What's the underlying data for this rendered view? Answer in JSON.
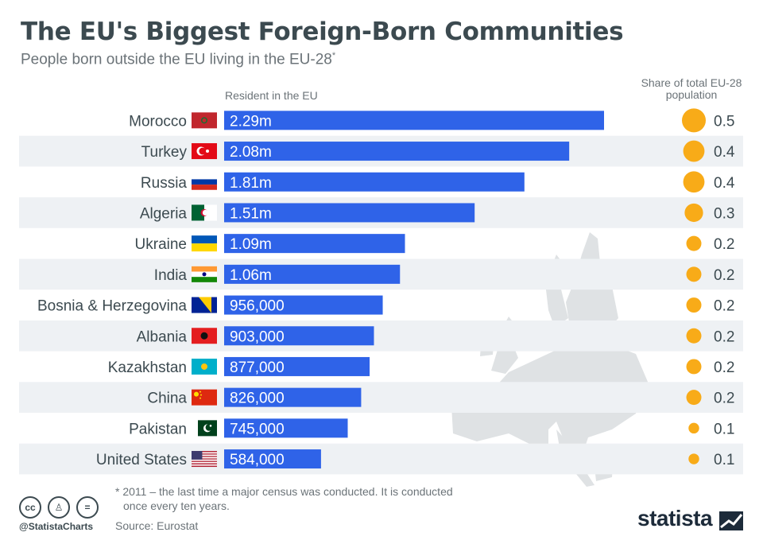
{
  "title": "The EU's Biggest Foreign-Born Communities",
  "subtitle": "People born outside the EU living in the EU-28",
  "subtitle_marker": "*",
  "chart_data": {
    "type": "bar",
    "orientation": "horizontal",
    "column_headers": {
      "left": "Resident in the EU",
      "right": "Share of total EU-28 population"
    },
    "categories": [
      "Morocco",
      "Turkey",
      "Russia",
      "Algeria",
      "Ukraine",
      "India",
      "Bosnia & Herzegovina",
      "Albania",
      "Kazakhstan",
      "China",
      "Pakistan",
      "United States"
    ],
    "values": [
      2290000,
      2080000,
      1810000,
      1510000,
      1090000,
      1060000,
      956000,
      903000,
      877000,
      826000,
      745000,
      584000
    ],
    "value_labels": [
      "2.29m",
      "2.08m",
      "1.81m",
      "1.51m",
      "1.09m",
      "1.06m",
      "956,000",
      "903,000",
      "877,000",
      "826,000",
      "745,000",
      "584,000"
    ],
    "share": [
      0.5,
      0.4,
      0.4,
      0.3,
      0.2,
      0.2,
      0.2,
      0.2,
      0.2,
      0.2,
      0.1,
      0.1
    ],
    "share_labels": [
      "0.5",
      "0.4",
      "0.4",
      "0.3",
      "0.2",
      "0.2",
      "0.2",
      "0.2",
      "0.2",
      "0.2",
      "0.1",
      "0.1"
    ],
    "flags": [
      "morocco-flag",
      "turkey-flag",
      "russia-flag",
      "algeria-flag",
      "ukraine-flag",
      "india-flag",
      "bosnia-flag",
      "albania-flag",
      "kazakhstan-flag",
      "china-flag",
      "pakistan-flag",
      "usa-flag"
    ],
    "colors": {
      "bar": "#2f63e8",
      "bubble": "#f8ab18",
      "row_stripe": "#eef1f4",
      "map": "#dfe2e4"
    }
  },
  "footnote": {
    "line1": "* 2011 – the last time a major census was conducted. It is conducted",
    "line2": "once every ten years."
  },
  "source": "Source: Eurostat",
  "handle": "@StatistaCharts",
  "brand": "statista",
  "license_icons": [
    "cc-icon",
    "attribution-icon",
    "no-derivatives-icon"
  ]
}
